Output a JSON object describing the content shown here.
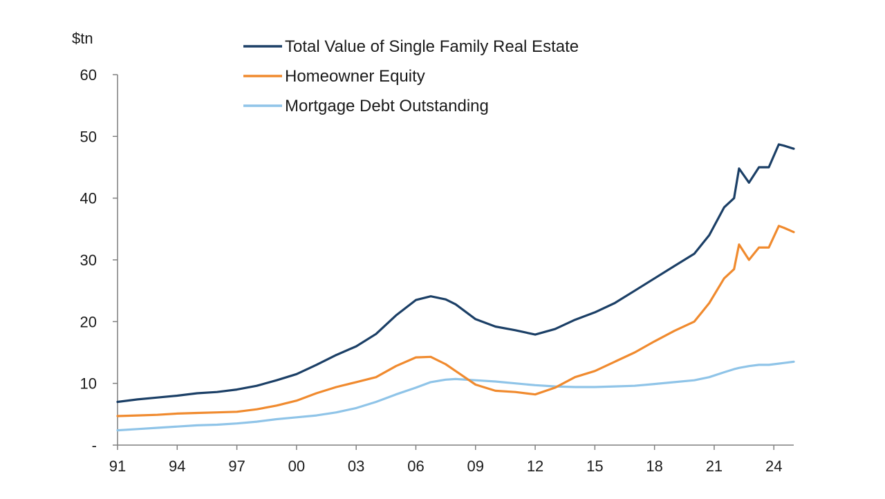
{
  "chart_data": {
    "type": "line",
    "ylabel": "$tn",
    "ylim": [
      0,
      60
    ],
    "xlim": [
      1991,
      2025
    ],
    "y_ticks": [
      0,
      10,
      20,
      30,
      40,
      50,
      60
    ],
    "y_tick_labels": [
      "-",
      "10",
      "20",
      "30",
      "40",
      "50",
      "60"
    ],
    "x_ticks": [
      1991,
      1994,
      1997,
      2000,
      2003,
      2006,
      2009,
      2012,
      2015,
      2018,
      2021,
      2024
    ],
    "x_tick_labels": [
      "91",
      "94",
      "97",
      "00",
      "03",
      "06",
      "09",
      "12",
      "15",
      "18",
      "21",
      "24"
    ],
    "grid": false,
    "legend_position": "top-center",
    "x": [
      1991,
      1992,
      1993,
      1994,
      1995,
      1996,
      1997,
      1998,
      1999,
      2000,
      2001,
      2002,
      2003,
      2004,
      2005,
      2006,
      2006.75,
      2007.5,
      2008,
      2009,
      2010,
      2011,
      2012,
      2013,
      2014,
      2015,
      2016,
      2017,
      2018,
      2019,
      2020,
      2020.75,
      2021.5,
      2022,
      2022.25,
      2022.75,
      2023.25,
      2023.75,
      2024.25,
      2024.5,
      2025
    ],
    "series": [
      {
        "name": "Total Value of Single Family Real Estate",
        "color": "#1b3f66",
        "values": [
          7.0,
          7.4,
          7.7,
          8.0,
          8.4,
          8.6,
          9.0,
          9.6,
          10.5,
          11.5,
          13.0,
          14.6,
          16.0,
          18.0,
          21.0,
          23.5,
          24.1,
          23.6,
          22.8,
          20.4,
          19.2,
          18.6,
          17.9,
          18.8,
          20.3,
          21.5,
          23.0,
          25.0,
          27.0,
          29.0,
          31.0,
          34.0,
          38.5,
          40.0,
          44.8,
          42.5,
          45.0,
          45.0,
          48.7,
          48.5,
          48.0
        ]
      },
      {
        "name": "Homeowner Equity",
        "color": "#f08a2e",
        "values": [
          4.7,
          4.8,
          4.9,
          5.1,
          5.2,
          5.3,
          5.4,
          5.8,
          6.4,
          7.2,
          8.4,
          9.4,
          10.2,
          11.0,
          12.8,
          14.2,
          14.3,
          13.1,
          12.0,
          9.8,
          8.8,
          8.6,
          8.2,
          9.3,
          11.0,
          12.0,
          13.5,
          15.0,
          16.8,
          18.5,
          20.0,
          23.0,
          27.0,
          28.5,
          32.5,
          30.0,
          32.0,
          32.0,
          35.5,
          35.2,
          34.5
        ]
      },
      {
        "name": "Mortgage Debt Outstanding",
        "color": "#8fc4e8",
        "values": [
          2.4,
          2.6,
          2.8,
          3.0,
          3.2,
          3.3,
          3.5,
          3.8,
          4.2,
          4.5,
          4.8,
          5.3,
          6.0,
          7.0,
          8.2,
          9.3,
          10.2,
          10.6,
          10.7,
          10.5,
          10.3,
          10.0,
          9.7,
          9.5,
          9.4,
          9.4,
          9.5,
          9.6,
          9.9,
          10.2,
          10.5,
          11.0,
          11.8,
          12.3,
          12.5,
          12.8,
          13.0,
          13.0,
          13.2,
          13.3,
          13.5
        ]
      }
    ]
  }
}
